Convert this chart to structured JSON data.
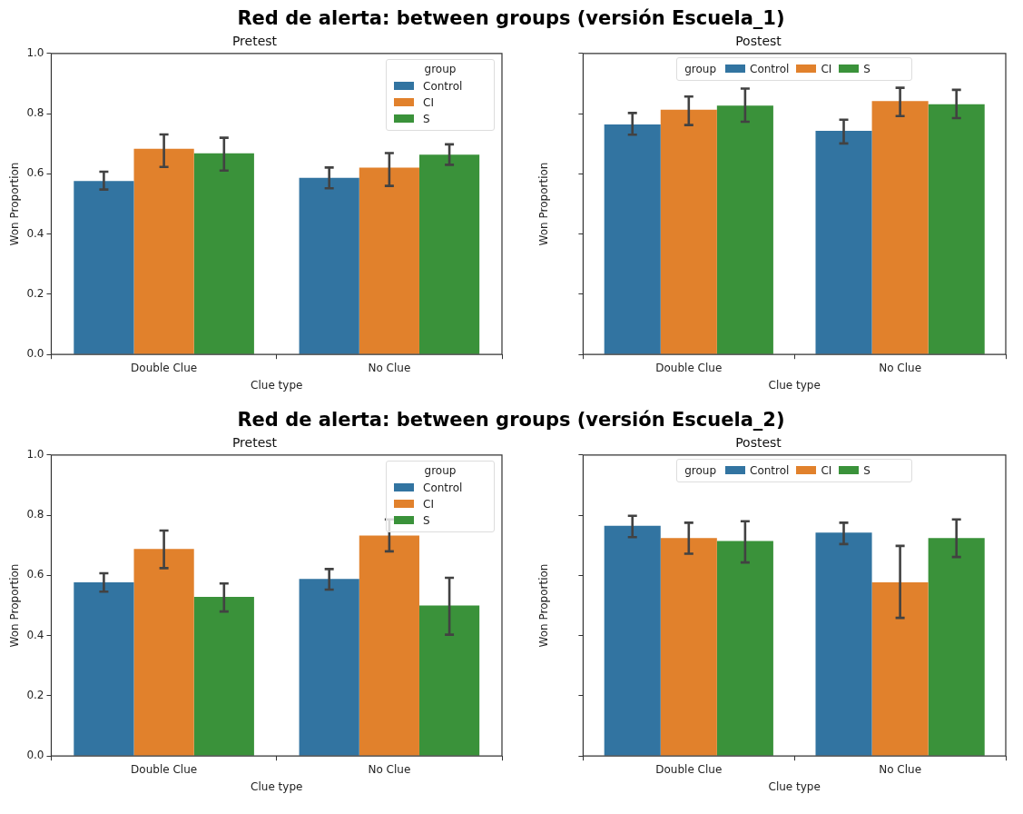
{
  "chart_data": [
    {
      "type": "bar",
      "title": "Red de alerta: between groups (versión Escuela_1)",
      "subtitle": "Pretest",
      "xlabel": "Clue type",
      "ylabel": "Won Proportion",
      "legend_title": "group",
      "legend": "top right",
      "grid": false,
      "categories": [
        "Double Clue",
        "No Clue"
      ],
      "ylim": [
        0,
        1
      ],
      "yticks": [
        {
          "value": 0,
          "label": "0.0"
        },
        {
          "value": 0.2,
          "label": "0.2"
        },
        {
          "value": 0.4,
          "label": "0.4"
        },
        {
          "value": 0.6,
          "label": "0.6"
        },
        {
          "value": 0.8,
          "label": "0.8"
        },
        {
          "value": 1,
          "label": "1.0"
        }
      ],
      "series": [
        {
          "name": "Control",
          "color": "#3274a1",
          "values": [
            0.576,
            0.587
          ],
          "errors": [
            [
              0.548,
              0.607
            ],
            [
              0.552,
              0.621
            ]
          ]
        },
        {
          "name": "CI",
          "color": "#e1812c",
          "values": [
            0.683,
            0.621
          ],
          "errors": [
            [
              0.623,
              0.731
            ],
            [
              0.56,
              0.669
            ]
          ]
        },
        {
          "name": "S",
          "color": "#3a923a",
          "values": [
            0.668,
            0.664
          ],
          "errors": [
            [
              0.611,
              0.72
            ],
            [
              0.63,
              0.698
            ]
          ]
        }
      ]
    },
    {
      "type": "bar",
      "title": "Postest",
      "xlabel": "Clue type",
      "ylabel": "Won Proportion",
      "legend_title": "group",
      "legend": "top",
      "grid": false,
      "tick_labels": "x",
      "categories": [
        "Double Clue",
        "No Clue"
      ],
      "ylim": [
        0,
        1
      ],
      "yticks": [
        {
          "value": 0,
          "label": null
        },
        {
          "value": 0.2,
          "label": null
        },
        {
          "value": 0.4,
          "label": null
        },
        {
          "value": 0.6,
          "label": null
        },
        {
          "value": 0.8,
          "label": null
        },
        {
          "value": 1,
          "label": null
        }
      ],
      "series": [
        {
          "name": "Control",
          "color": "#3274a1",
          "values": [
            0.764,
            0.743
          ],
          "errors": [
            [
              0.73,
              0.802
            ],
            [
              0.701,
              0.78
            ]
          ]
        },
        {
          "name": "CI",
          "color": "#e1812c",
          "values": [
            0.813,
            0.842
          ],
          "errors": [
            [
              0.762,
              0.857
            ],
            [
              0.792,
              0.886
            ]
          ]
        },
        {
          "name": "S",
          "color": "#3a923a",
          "values": [
            0.827,
            0.831
          ],
          "errors": [
            [
              0.773,
              0.883
            ],
            [
              0.785,
              0.879
            ]
          ]
        }
      ]
    },
    {
      "type": "bar",
      "title": "Red de alerta: between groups (versión Escuela_2)",
      "subtitle": "Pretest",
      "xlabel": "Clue type",
      "ylabel": "Won Proportion",
      "legend_title": "group",
      "legend": "top right",
      "grid": false,
      "categories": [
        "Double Clue",
        "No Clue"
      ],
      "ylim": [
        0,
        1
      ],
      "yticks": [
        {
          "value": 0,
          "label": "0.0"
        },
        {
          "value": 0.2,
          "label": "0.2"
        },
        {
          "value": 0.4,
          "label": "0.4"
        },
        {
          "value": 0.6,
          "label": "0.6"
        },
        {
          "value": 0.8,
          "label": "0.8"
        },
        {
          "value": 1,
          "label": "1.0"
        }
      ],
      "series": [
        {
          "name": "Control",
          "color": "#3274a1",
          "values": [
            0.577,
            0.588
          ],
          "errors": [
            [
              0.546,
              0.607
            ],
            [
              0.553,
              0.621
            ]
          ]
        },
        {
          "name": "CI",
          "color": "#e1812c",
          "values": [
            0.688,
            0.732
          ],
          "errors": [
            [
              0.624,
              0.749
            ],
            [
              0.68,
              0.786
            ]
          ]
        },
        {
          "name": "S",
          "color": "#3a923a",
          "values": [
            0.529,
            0.5
          ],
          "errors": [
            [
              0.48,
              0.573
            ],
            [
              0.403,
              0.592
            ]
          ]
        }
      ]
    },
    {
      "type": "bar",
      "title": "Postest",
      "xlabel": "Clue type",
      "ylabel": "Won Proportion",
      "legend_title": "group",
      "legend": "top",
      "grid": false,
      "tick_labels": "x",
      "categories": [
        "Double Clue",
        "No Clue"
      ],
      "ylim": [
        0,
        1
      ],
      "yticks": [
        {
          "value": 0,
          "label": null
        },
        {
          "value": 0.2,
          "label": null
        },
        {
          "value": 0.4,
          "label": null
        },
        {
          "value": 0.6,
          "label": null
        },
        {
          "value": 0.8,
          "label": null
        },
        {
          "value": 1,
          "label": null
        }
      ],
      "series": [
        {
          "name": "Control",
          "color": "#3274a1",
          "values": [
            0.765,
            0.742
          ],
          "errors": [
            [
              0.727,
              0.798
            ],
            [
              0.704,
              0.775
            ]
          ]
        },
        {
          "name": "CI",
          "color": "#e1812c",
          "values": [
            0.724,
            0.577
          ],
          "errors": [
            [
              0.672,
              0.775
            ],
            [
              0.459,
              0.698
            ]
          ]
        },
        {
          "name": "S",
          "color": "#3a923a",
          "values": [
            0.714,
            0.724
          ],
          "errors": [
            [
              0.643,
              0.78
            ],
            [
              0.661,
              0.786
            ]
          ]
        }
      ]
    }
  ]
}
